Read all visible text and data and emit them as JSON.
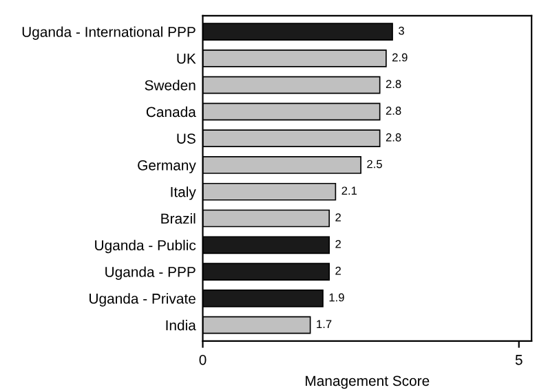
{
  "chart_data": {
    "type": "bar",
    "orientation": "horizontal",
    "xlabel": "Management Score",
    "categories": [
      "Uganda - International PPP",
      "UK",
      "Sweden",
      "Canada",
      "US",
      "Germany",
      "Italy",
      "Brazil",
      "Uganda - Public",
      "Uganda - PPP",
      "Uganda - Private",
      "India"
    ],
    "values": [
      3,
      2.9,
      2.8,
      2.8,
      2.8,
      2.5,
      2.1,
      2,
      2,
      2,
      1.9,
      1.7
    ],
    "colors": [
      "#1a1a1a",
      "#c0c0c0",
      "#c0c0c0",
      "#c0c0c0",
      "#c0c0c0",
      "#c0c0c0",
      "#c0c0c0",
      "#c0c0c0",
      "#1a1a1a",
      "#1a1a1a",
      "#1a1a1a",
      "#c0c0c0"
    ],
    "xlim": [
      0,
      5.2
    ],
    "xticks": [
      0,
      5
    ],
    "data_labels": true,
    "grid": false,
    "legend": false
  }
}
